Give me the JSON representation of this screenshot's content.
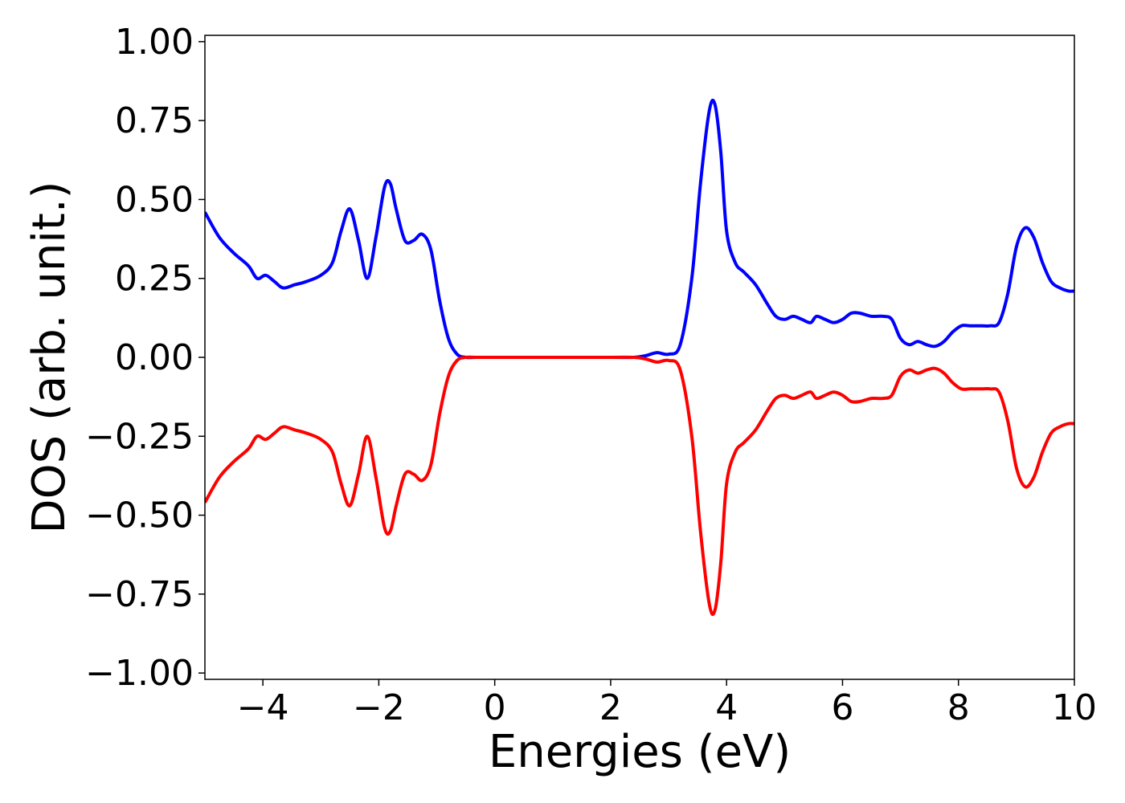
{
  "chart_data": {
    "type": "line",
    "title": "",
    "xlabel": "Energies (eV)",
    "ylabel": "DOS (arb. unit.)",
    "xlim": [
      -5,
      10
    ],
    "ylim": [
      -1.02,
      1.02
    ],
    "grid": false,
    "legend": "none",
    "x_ticks": [
      -4,
      -2,
      0,
      2,
      4,
      6,
      8,
      10
    ],
    "x_tick_labels": [
      "−4",
      "−2",
      "0",
      "2",
      "4",
      "6",
      "8",
      "10"
    ],
    "y_ticks": [
      1.0,
      0.75,
      0.5,
      0.25,
      0.0,
      -0.25,
      -0.5,
      -0.75,
      -1.0
    ],
    "y_tick_labels": [
      "1.00",
      "0.75",
      "0.50",
      "0.25",
      "0.00",
      "−0.25",
      "−0.50",
      "−0.75",
      "−1.00"
    ],
    "series": [
      {
        "color": "#0000ff",
        "x": [
          -5.0,
          -4.75,
          -4.5,
          -4.25,
          -4.1,
          -3.95,
          -3.8,
          -3.65,
          -3.45,
          -3.25,
          -3.0,
          -2.8,
          -2.65,
          -2.5,
          -2.35,
          -2.2,
          -2.05,
          -1.9,
          -1.8,
          -1.7,
          -1.55,
          -1.4,
          -1.25,
          -1.1,
          -0.95,
          -0.8,
          -0.65,
          -0.5,
          -0.3,
          0.0,
          1.0,
          2.0,
          2.4,
          2.6,
          2.8,
          3.0,
          3.2,
          3.4,
          3.55,
          3.7,
          3.8,
          3.9,
          4.0,
          4.15,
          4.3,
          4.5,
          4.7,
          4.85,
          5.0,
          5.15,
          5.3,
          5.45,
          5.55,
          5.7,
          5.85,
          6.0,
          6.15,
          6.3,
          6.5,
          6.7,
          6.85,
          7.0,
          7.15,
          7.3,
          7.45,
          7.6,
          7.75,
          7.9,
          8.05,
          8.2,
          8.4,
          8.55,
          8.7,
          8.85,
          9.0,
          9.15,
          9.3,
          9.45,
          9.6,
          9.75,
          9.9,
          10.0
        ],
        "y": [
          0.46,
          0.38,
          0.33,
          0.29,
          0.25,
          0.26,
          0.24,
          0.22,
          0.23,
          0.24,
          0.26,
          0.3,
          0.4,
          0.47,
          0.37,
          0.25,
          0.38,
          0.54,
          0.55,
          0.47,
          0.37,
          0.37,
          0.39,
          0.34,
          0.18,
          0.06,
          0.01,
          0.0,
          0.0,
          0.0,
          0.0,
          0.0,
          0.0,
          0.005,
          0.015,
          0.01,
          0.04,
          0.25,
          0.55,
          0.78,
          0.8,
          0.65,
          0.4,
          0.3,
          0.27,
          0.23,
          0.17,
          0.13,
          0.12,
          0.13,
          0.12,
          0.11,
          0.13,
          0.12,
          0.11,
          0.12,
          0.14,
          0.14,
          0.13,
          0.13,
          0.12,
          0.06,
          0.04,
          0.05,
          0.04,
          0.035,
          0.05,
          0.08,
          0.1,
          0.1,
          0.1,
          0.1,
          0.11,
          0.2,
          0.35,
          0.41,
          0.38,
          0.3,
          0.24,
          0.22,
          0.21,
          0.21
        ]
      },
      {
        "color": "#ff0000",
        "x": [
          -5.0,
          -4.75,
          -4.5,
          -4.25,
          -4.1,
          -3.95,
          -3.8,
          -3.65,
          -3.45,
          -3.25,
          -3.0,
          -2.8,
          -2.65,
          -2.5,
          -2.35,
          -2.2,
          -2.05,
          -1.9,
          -1.8,
          -1.7,
          -1.55,
          -1.4,
          -1.25,
          -1.1,
          -0.95,
          -0.8,
          -0.65,
          -0.5,
          -0.3,
          0.0,
          1.0,
          2.0,
          2.4,
          2.6,
          2.8,
          3.0,
          3.2,
          3.4,
          3.55,
          3.7,
          3.8,
          3.9,
          4.0,
          4.15,
          4.3,
          4.5,
          4.7,
          4.85,
          5.0,
          5.15,
          5.3,
          5.45,
          5.55,
          5.7,
          5.85,
          6.0,
          6.15,
          6.3,
          6.5,
          6.7,
          6.85,
          7.0,
          7.15,
          7.3,
          7.45,
          7.6,
          7.75,
          7.9,
          8.05,
          8.2,
          8.4,
          8.55,
          8.7,
          8.85,
          9.0,
          9.15,
          9.3,
          9.45,
          9.6,
          9.75,
          9.9,
          10.0
        ],
        "y": [
          -0.46,
          -0.38,
          -0.33,
          -0.29,
          -0.25,
          -0.26,
          -0.24,
          -0.22,
          -0.23,
          -0.24,
          -0.26,
          -0.3,
          -0.4,
          -0.47,
          -0.37,
          -0.25,
          -0.38,
          -0.54,
          -0.55,
          -0.47,
          -0.37,
          -0.37,
          -0.39,
          -0.34,
          -0.18,
          -0.06,
          -0.01,
          0.0,
          0.0,
          0.0,
          0.0,
          0.0,
          0.0,
          -0.005,
          -0.015,
          -0.01,
          -0.04,
          -0.25,
          -0.55,
          -0.78,
          -0.8,
          -0.65,
          -0.4,
          -0.3,
          -0.27,
          -0.23,
          -0.17,
          -0.13,
          -0.12,
          -0.13,
          -0.12,
          -0.11,
          -0.13,
          -0.12,
          -0.11,
          -0.12,
          -0.14,
          -0.14,
          -0.13,
          -0.13,
          -0.12,
          -0.06,
          -0.04,
          -0.05,
          -0.04,
          -0.035,
          -0.05,
          -0.08,
          -0.1,
          -0.1,
          -0.1,
          -0.1,
          -0.11,
          -0.2,
          -0.35,
          -0.41,
          -0.38,
          -0.3,
          -0.24,
          -0.22,
          -0.21,
          -0.21
        ]
      }
    ]
  }
}
